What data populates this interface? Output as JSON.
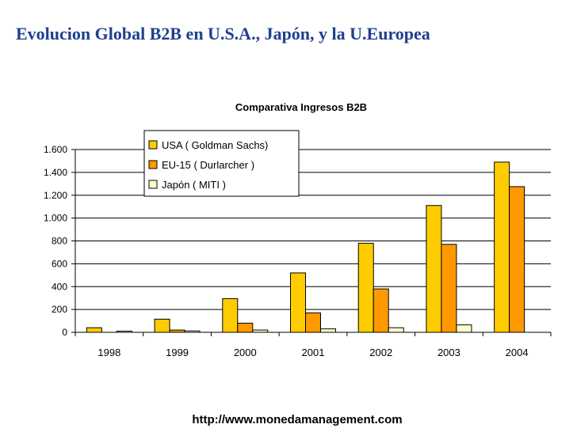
{
  "slide": {
    "title": "Evolucion Global B2B en U.S.A., Japón, y la U.Europea",
    "footer_url": "http://www.monedamanagement.com"
  },
  "colors": {
    "usa": "#ffcc00",
    "eu": "#ff9900",
    "japan": "#ffffcc",
    "grid": "#000000"
  },
  "chart_data": {
    "type": "bar",
    "title": "Comparativa Ingresos  B2B",
    "xlabel": "",
    "ylabel": "",
    "ylim": [
      0,
      1600
    ],
    "yticks": [
      0,
      200,
      400,
      600,
      800,
      1000,
      1200,
      1400,
      1600
    ],
    "ytick_labels": [
      "0",
      "200",
      "400",
      "600",
      "800",
      "1.000",
      "1.200",
      "1.400",
      "1.600"
    ],
    "grid": true,
    "legend_position": "top-left",
    "categories": [
      "1998",
      "1999",
      "2000",
      "2001",
      "2002",
      "2003",
      "2004"
    ],
    "series": [
      {
        "name": "USA  ( Goldman Sachs)",
        "color_key": "usa",
        "values": [
          40,
          115,
          295,
          520,
          780,
          1110,
          1490
        ]
      },
      {
        "name": "EU-15  ( Durlarcher )",
        "color_key": "eu",
        "values": [
          0,
          20,
          80,
          170,
          380,
          770,
          1275
        ]
      },
      {
        "name": "Japón  ( MITI )",
        "color_key": "japan",
        "values": [
          10,
          12,
          20,
          30,
          40,
          65,
          0
        ]
      }
    ]
  }
}
